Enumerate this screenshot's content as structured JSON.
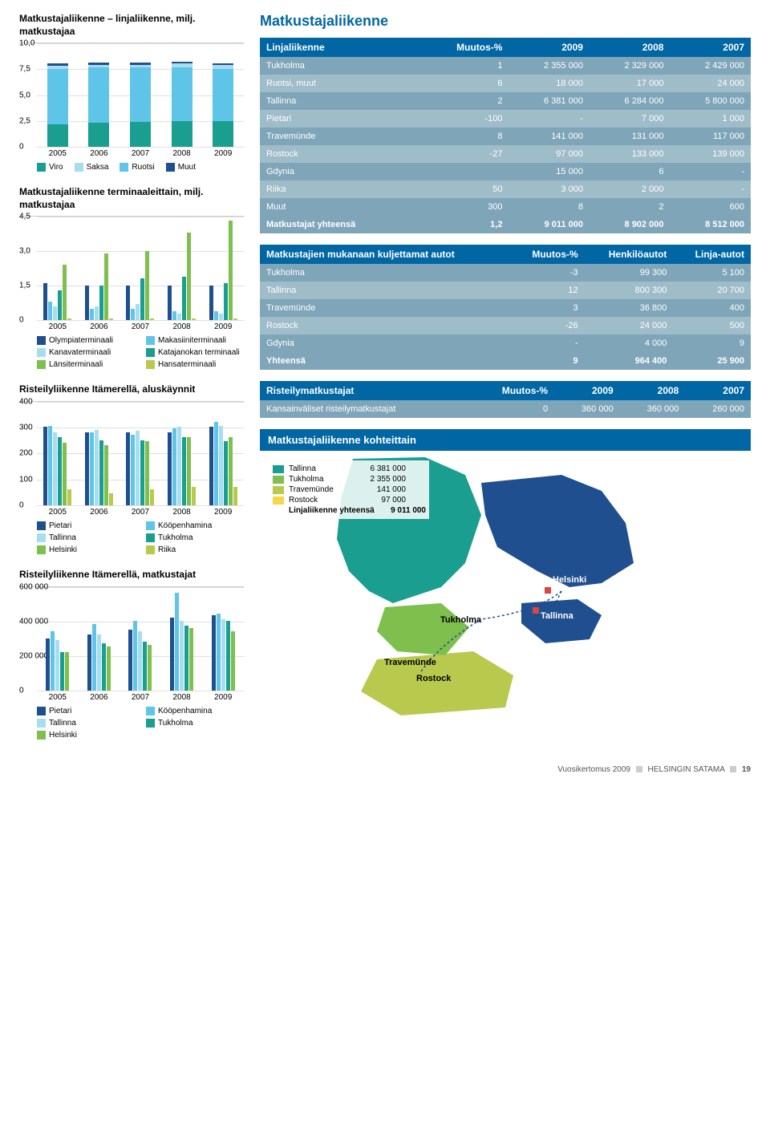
{
  "colors": {
    "brand": "#0066a4",
    "teal": "#1a9e8f",
    "lightblue": "#5fc5e8",
    "sky": "#a8dcf0",
    "darkblue": "#1f4f8f",
    "green": "#7fbf4d",
    "olive": "#b8c94d",
    "grid": "#e0e0e0"
  },
  "chart1": {
    "title": "Matkustajaliikenne – linjaliikenne, milj. matkustajaa",
    "years": [
      "2005",
      "2006",
      "2007",
      "2008",
      "2009"
    ],
    "ymax": 10,
    "yticks": [
      0,
      2.5,
      5.0,
      7.5,
      10.0
    ],
    "ytick_labels": [
      "0",
      "2,5",
      "5,0",
      "7,5",
      "10,0"
    ],
    "series": {
      "Viro": {
        "color": "#1a9e8f",
        "vals": [
          2.2,
          2.3,
          2.4,
          2.5,
          2.5
        ]
      },
      "Ruotsi": {
        "color": "#5fc5e8",
        "vals": [
          5.3,
          5.3,
          5.2,
          5.1,
          5.0
        ]
      },
      "Saksa": {
        "color": "#a8dcf0",
        "vals": [
          0.3,
          0.3,
          0.3,
          0.4,
          0.4
        ]
      },
      "Muut": {
        "color": "#1f4f8f",
        "vals": [
          0.2,
          0.2,
          0.2,
          0.2,
          0.1
        ]
      }
    },
    "legend": [
      [
        "Viro",
        "#1a9e8f"
      ],
      [
        "Saksa",
        "#a8dcf0"
      ],
      [
        "Ruotsi",
        "#5fc5e8"
      ],
      [
        "Muut",
        "#1f4f8f"
      ]
    ]
  },
  "chart2": {
    "title": "Matkustajaliikenne terminaaleittain, milj. matkustajaa",
    "years": [
      "2005",
      "2006",
      "2007",
      "2008",
      "2009"
    ],
    "ymax": 4.5,
    "yticks": [
      0,
      1.5,
      3.0,
      4.5
    ],
    "ytick_labels": [
      "0",
      "1,5",
      "3,0",
      "4,5"
    ],
    "series": [
      {
        "name": "Olympiaterminaali",
        "color": "#1f4f8f",
        "vals": [
          1.6,
          1.5,
          1.5,
          1.5,
          1.5
        ]
      },
      {
        "name": "Makasiiniterminaali",
        "color": "#5fc5e8",
        "vals": [
          0.8,
          0.5,
          0.5,
          0.4,
          0.4
        ]
      },
      {
        "name": "Kanavaterminaali",
        "color": "#a8dcf0",
        "vals": [
          0.6,
          0.6,
          0.7,
          0.3,
          0.3
        ]
      },
      {
        "name": "Katajanokan terminaali",
        "color": "#1a9e8f",
        "vals": [
          1.3,
          1.5,
          1.8,
          1.9,
          1.6
        ]
      },
      {
        "name": "Länsiterminaali",
        "color": "#7fbf4d",
        "vals": [
          2.4,
          2.9,
          3.0,
          3.8,
          4.3
        ]
      },
      {
        "name": "Hansaterminaali",
        "color": "#b8c94d",
        "vals": [
          0.1,
          0.1,
          0.1,
          0.1,
          0.1
        ]
      }
    ]
  },
  "chart3": {
    "title": "Risteilyliikenne Itämerellä, aluskäynnit",
    "years": [
      "2005",
      "2006",
      "2007",
      "2008",
      "2009"
    ],
    "ymax": 400,
    "yticks": [
      0,
      100,
      200,
      300,
      400
    ],
    "ytick_labels": [
      "0",
      "100",
      "200",
      "300",
      "400"
    ],
    "series": [
      {
        "name": "Pietari",
        "color": "#1f4f8f",
        "vals": [
          300,
          280,
          280,
          280,
          300
        ]
      },
      {
        "name": "Kööpenhamina",
        "color": "#5fc5e8",
        "vals": [
          305,
          280,
          270,
          295,
          320
        ]
      },
      {
        "name": "Tallinna",
        "color": "#a8dcf0",
        "vals": [
          280,
          290,
          285,
          300,
          305
        ]
      },
      {
        "name": "Tukholma",
        "color": "#1a9e8f",
        "vals": [
          260,
          250,
          250,
          260,
          245
        ]
      },
      {
        "name": "Helsinki",
        "color": "#7fbf4d",
        "vals": [
          240,
          230,
          245,
          260,
          260
        ]
      },
      {
        "name": "Riika",
        "color": "#b8c94d",
        "vals": [
          60,
          45,
          60,
          70,
          70
        ]
      }
    ]
  },
  "chart4": {
    "title": "Risteilyliikenne Itämerellä, matkustajat",
    "years": [
      "2005",
      "2006",
      "2007",
      "2008",
      "2009"
    ],
    "ymax": 600000,
    "yticks": [
      0,
      200000,
      400000,
      600000
    ],
    "ytick_labels": [
      "0",
      "200 000",
      "400 000",
      "600 000"
    ],
    "series": [
      {
        "name": "Pietari",
        "color": "#1f4f8f",
        "vals": [
          300000,
          320000,
          350000,
          420000,
          430000
        ]
      },
      {
        "name": "Kööpenhamina",
        "color": "#5fc5e8",
        "vals": [
          340000,
          380000,
          400000,
          560000,
          440000
        ]
      },
      {
        "name": "Tallinna",
        "color": "#a8dcf0",
        "vals": [
          290000,
          320000,
          340000,
          400000,
          410000
        ]
      },
      {
        "name": "Tukholma",
        "color": "#1a9e8f",
        "vals": [
          220000,
          270000,
          280000,
          370000,
          400000
        ]
      },
      {
        "name": "Helsinki",
        "color": "#7fbf4d",
        "vals": [
          220000,
          250000,
          260000,
          360000,
          340000
        ]
      }
    ]
  },
  "section_title": "Matkustajaliikenne",
  "table1": {
    "headers": [
      "Linjaliikenne",
      "Muutos-%",
      "2009",
      "2008",
      "2007"
    ],
    "rows": [
      [
        "Tukholma",
        "1",
        "2 355 000",
        "2 329 000",
        "2 429 000"
      ],
      [
        "Ruotsi, muut",
        "6",
        "18 000",
        "17 000",
        "24 000"
      ],
      [
        "Tallinna",
        "2",
        "6 381 000",
        "6 284 000",
        "5 800 000"
      ],
      [
        "Pietari",
        "-100",
        "-",
        "7 000",
        "1 000"
      ],
      [
        "Travemünde",
        "8",
        "141 000",
        "131 000",
        "117 000"
      ],
      [
        "Rostock",
        "-27",
        "97 000",
        "133 000",
        "139 000"
      ],
      [
        "Gdynia",
        "",
        "15 000",
        "6",
        "-"
      ],
      [
        "Riika",
        "50",
        "3 000",
        "2 000",
        "-"
      ],
      [
        "Muut",
        "300",
        "8",
        "2",
        "600"
      ]
    ],
    "total": [
      "Matkustajat yhteensä",
      "1,2",
      "9 011 000",
      "8 902 000",
      "8 512 000"
    ]
  },
  "table2": {
    "headers": [
      "Matkustajien mukanaan kuljettamat autot",
      "Muutos-%",
      "Henkilöautot",
      "Linja-autot"
    ],
    "rows": [
      [
        "Tukholma",
        "-3",
        "99 300",
        "5 100"
      ],
      [
        "Tallinna",
        "12",
        "800 300",
        "20 700"
      ],
      [
        "Travemünde",
        "3",
        "36 800",
        "400"
      ],
      [
        "Rostock",
        "-26",
        "24 000",
        "500"
      ],
      [
        "Gdynia",
        "-",
        "4 000",
        "9"
      ]
    ],
    "total": [
      "Yhteensä",
      "9",
      "964 400",
      "25 900"
    ]
  },
  "table3": {
    "headers": [
      "Risteilymatkustajat",
      "Muutos-%",
      "2009",
      "2008",
      "2007"
    ],
    "rows": [
      [
        "Kansainväliset risteilymatkustajat",
        "0",
        "360 000",
        "360 000",
        "260 000"
      ]
    ]
  },
  "map": {
    "title": "Matkustajaliikenne kohteittain",
    "legend": [
      {
        "color": "#1a9e8f",
        "label": "Tallinna",
        "val": "6 381 000"
      },
      {
        "color": "#7fbf4d",
        "label": "Tukholma",
        "val": "2 355 000"
      },
      {
        "color": "#b8c94d",
        "label": "Travemünde",
        "val": "141 000"
      },
      {
        "color": "#f5d647",
        "label": "Rostock",
        "val": "97 000"
      }
    ],
    "total": {
      "label": "Linjaliikenne yhteensä",
      "val": "9 011 000"
    },
    "cities": [
      "Helsinki",
      "Tallinna",
      "Tukholma",
      "Travemünde",
      "Rostock"
    ]
  },
  "footer": {
    "left": "Vuosikertomus 2009",
    "right": "HELSINGIN SATAMA",
    "page": "19"
  }
}
